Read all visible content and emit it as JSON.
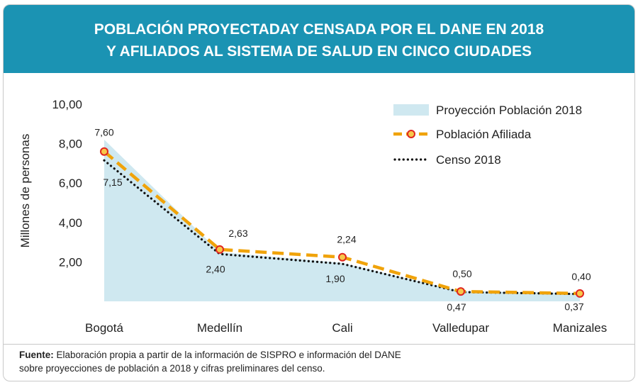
{
  "title_line1": "POBLACIÓN PROYECTADAY CENSADA POR EL DANE EN 2018",
  "title_line2": "Y AFILIADOS AL SISTEMA DE SALUD EN CINCO CIUDADES",
  "footer": {
    "label": "Fuente:",
    "line1": " Elaboración propia a partir de la información de SISPRO e información del DANE",
    "line2": "sobre proyecciones de población a 2018 y cifras preliminares del censo."
  },
  "colors": {
    "header": "#1b93b3",
    "area": "#cfe8f0",
    "afiliada": "#f0a30a",
    "afiliada_marker_fill": "#f7c84a",
    "afiliada_marker_ring": "#e0261f",
    "censo": "#111111"
  },
  "chart_data": {
    "type": "line",
    "categories": [
      "Bogotá",
      "Medellín",
      "Cali",
      "Valledupar",
      "Manizales"
    ],
    "ylabel": "Millones de personas",
    "ylim": [
      0,
      10
    ],
    "yticks": [
      "10,00",
      "8,00",
      "6,00",
      "4,00",
      "2,00"
    ],
    "ytick_values": [
      10,
      8,
      6,
      4,
      2
    ],
    "legend_position": "top-right",
    "series": [
      {
        "name": "Proyección Población 2018",
        "kind": "area",
        "values": [
          8.2,
          2.5,
          1.95,
          0.52,
          0.42
        ]
      },
      {
        "name": "Población Afiliada",
        "kind": "dashed-markers",
        "values": [
          7.6,
          2.63,
          2.24,
          0.5,
          0.4
        ],
        "labels": [
          "7,60",
          "2,63",
          "2,24",
          "0,50",
          "0,40"
        ]
      },
      {
        "name": "Censo 2018",
        "kind": "dotted",
        "values": [
          7.15,
          2.4,
          1.9,
          0.47,
          0.37
        ],
        "labels": [
          "7,15",
          "2,40",
          "1,90",
          "0,47",
          "0,37"
        ]
      }
    ]
  }
}
